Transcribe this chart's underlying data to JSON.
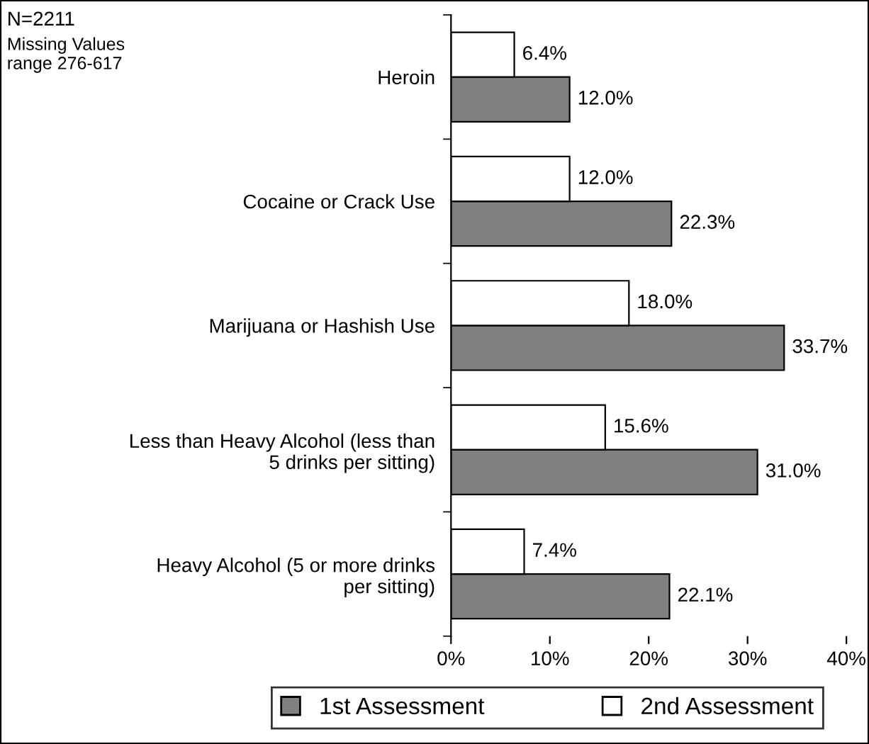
{
  "chart_data": {
    "type": "bar",
    "orientation": "horizontal",
    "categories": [
      "Heroin",
      "Cocaine or Crack Use",
      "Marijuana or Hashish Use",
      "Less than Heavy Alcohol (less than 5 drinks per sitting)",
      "Heavy Alcohol (5 or more drinks per sitting)"
    ],
    "series": [
      {
        "name": "1st Assessment",
        "color": "#808080",
        "values": [
          12.0,
          22.3,
          33.7,
          31.0,
          22.1
        ],
        "value_labels": [
          "12.0%",
          "22.3%",
          "33.7%",
          "31.0%",
          "22.1%"
        ]
      },
      {
        "name": "2nd Assessment",
        "color": "#ffffff",
        "values": [
          6.4,
          12.0,
          18.0,
          15.6,
          7.4
        ],
        "value_labels": [
          "6.4%",
          "12.0%",
          "18.0%",
          "15.6%",
          "7.4%"
        ]
      }
    ],
    "xlim": [
      0,
      40
    ],
    "xticks": [
      {
        "value": 0,
        "label": "0%"
      },
      {
        "value": 10,
        "label": "10%"
      },
      {
        "value": 20,
        "label": "20%"
      },
      {
        "value": 30,
        "label": "30%"
      },
      {
        "value": 40,
        "label": "40%"
      }
    ],
    "grid": false,
    "legend": "bottom",
    "annotations": [
      "N=2211",
      "Missing Values\nrange 276-617"
    ]
  }
}
